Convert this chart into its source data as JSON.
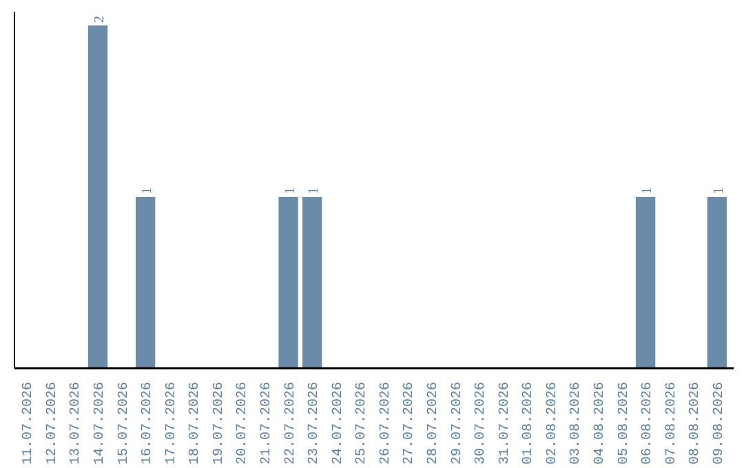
{
  "chart_data": {
    "type": "bar",
    "categories": [
      "11.07.2026",
      "12.07.2026",
      "13.07.2026",
      "14.07.2026",
      "15.07.2026",
      "16.07.2026",
      "17.07.2026",
      "18.07.2026",
      "19.07.2026",
      "20.07.2026",
      "21.07.2026",
      "22.07.2026",
      "23.07.2026",
      "24.07.2026",
      "25.07.2026",
      "26.07.2026",
      "27.07.2026",
      "28.07.2026",
      "29.07.2026",
      "30.07.2026",
      "31.07.2026",
      "01.08.2026",
      "02.08.2026",
      "03.08.2026",
      "04.08.2026",
      "05.08.2026",
      "06.08.2026",
      "07.08.2026",
      "08.08.2026",
      "09.08.2026"
    ],
    "values": [
      0,
      0,
      0,
      2,
      0,
      1,
      0,
      0,
      0,
      0,
      0,
      1,
      1,
      0,
      0,
      0,
      0,
      0,
      0,
      0,
      0,
      0,
      0,
      0,
      0,
      0,
      1,
      0,
      0,
      1
    ],
    "value_labels": [
      null,
      null,
      null,
      "2",
      null,
      "1",
      null,
      null,
      null,
      null,
      null,
      "1",
      "1",
      null,
      null,
      null,
      null,
      null,
      null,
      null,
      null,
      null,
      null,
      null,
      null,
      null,
      "1",
      null,
      null,
      "1"
    ],
    "color": "#6a8caa",
    "ylim": [
      0,
      2
    ],
    "tick_labels": "x",
    "grid": false
  }
}
